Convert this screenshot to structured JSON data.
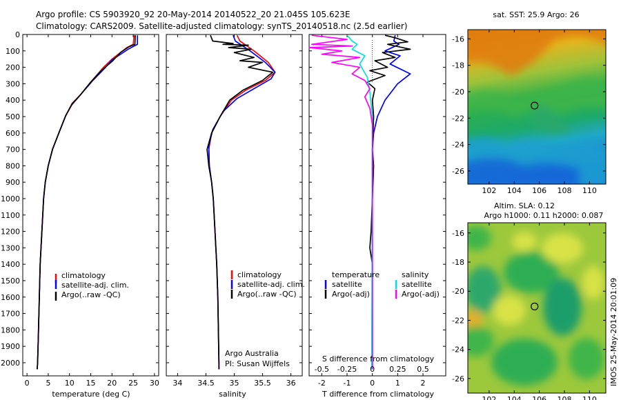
{
  "header": {
    "line1": "Argo profile: CS 5903920_92 20-May-2014 20140522_20 21.045S 105.623E",
    "line2": "Climatology: CARS2009. Satellite-adjusted climatology: synTS_20140518.nc (2.5d earlier)"
  },
  "colors": {
    "climatology": "#ff0000",
    "satellite": "#0000ff",
    "argo": "#000000",
    "sat_salinity": "#00e0e0",
    "argo_salinity_diff": "#ff00ff"
  },
  "chart_data": [
    {
      "type": "line",
      "name": "temperature-profile",
      "xlabel": "temperature (deg C)",
      "ylabel": "",
      "xlim": [
        -1,
        31
      ],
      "ylim": [
        2080,
        0
      ],
      "xticks": [
        0,
        5,
        10,
        15,
        20,
        25,
        30
      ],
      "yticks": [
        0,
        100,
        200,
        300,
        400,
        500,
        600,
        700,
        800,
        900,
        1000,
        1100,
        1200,
        1300,
        1400,
        1500,
        1600,
        1700,
        1800,
        1900,
        2000
      ],
      "legend": [
        "climatology",
        "satellite-adj. clim.",
        "Argo(..raw -QC)"
      ],
      "series": [
        {
          "name": "climatology",
          "color": "#ff0000",
          "points": [
            [
              25.2,
              5
            ],
            [
              25,
              60
            ],
            [
              23.5,
              80
            ],
            [
              20,
              150
            ],
            [
              18,
              200
            ],
            [
              15,
              290
            ],
            [
              12.5,
              370
            ],
            [
              10.6,
              420
            ],
            [
              9,
              500
            ],
            [
              7.5,
              600
            ],
            [
              6,
              700
            ],
            [
              5,
              800
            ],
            [
              4.3,
              900
            ],
            [
              3.9,
              1000
            ],
            [
              3.5,
              1200
            ],
            [
              3.1,
              1400
            ],
            [
              2.9,
              1600
            ],
            [
              2.7,
              1800
            ],
            [
              2.5,
              2000
            ],
            [
              2.4,
              2040
            ]
          ]
        },
        {
          "name": "satellite-adj. clim.",
          "color": "#0000ff",
          "points": [
            [
              26,
              5
            ],
            [
              26,
              60
            ],
            [
              23.8,
              90
            ],
            [
              20,
              155
            ],
            [
              18.5,
              200
            ],
            [
              15.5,
              280
            ],
            [
              12.5,
              370
            ],
            [
              10.5,
              430
            ],
            [
              9,
              500
            ],
            [
              7.5,
              600
            ],
            [
              6,
              700
            ],
            [
              5,
              800
            ],
            [
              4.3,
              900
            ],
            [
              3.9,
              1000
            ],
            [
              3.5,
              1200
            ],
            [
              3.1,
              1400
            ],
            [
              2.9,
              1600
            ],
            [
              2.7,
              1800
            ],
            [
              2.5,
              2000
            ],
            [
              2.4,
              2040
            ]
          ]
        },
        {
          "name": "Argo(..raw -QC)",
          "color": "#000000",
          "points": [
            [
              25.5,
              5
            ],
            [
              25.4,
              60
            ],
            [
              24,
              75
            ],
            [
              22,
              110
            ],
            [
              20.2,
              160
            ],
            [
              17.5,
              220
            ],
            [
              15,
              290
            ],
            [
              12.5,
              370
            ],
            [
              10.7,
              420
            ],
            [
              9.2,
              490
            ],
            [
              7.5,
              600
            ],
            [
              6,
              700
            ],
            [
              5,
              800
            ],
            [
              4.3,
              900
            ],
            [
              3.9,
              1000
            ],
            [
              3.5,
              1200
            ],
            [
              3.1,
              1400
            ],
            [
              2.9,
              1600
            ],
            [
              2.7,
              1800
            ],
            [
              2.5,
              2000
            ],
            [
              2.4,
              2040
            ]
          ]
        }
      ]
    },
    {
      "type": "line",
      "name": "salinity-profile",
      "xlabel": "salinity",
      "xlim": [
        33.8,
        36.2
      ],
      "ylim": [
        2080,
        0
      ],
      "xticks": [
        34,
        34.5,
        35,
        35.5,
        36
      ],
      "xticklabels": [
        "34",
        "34.5",
        "35",
        "35.5",
        "36"
      ],
      "legend": [
        "climatology",
        "satellite-adj. clim.",
        "Argo(..raw -QC)"
      ],
      "annotations": [
        "Argo Australia",
        "PI: Susan Wijffels"
      ],
      "series": [
        {
          "name": "climatology",
          "color": "#ff0000",
          "points": [
            [
              35.05,
              5
            ],
            [
              35.1,
              40
            ],
            [
              35.35,
              100
            ],
            [
              35.6,
              170
            ],
            [
              35.72,
              230
            ],
            [
              35.55,
              280
            ],
            [
              35.2,
              340
            ],
            [
              34.95,
              400
            ],
            [
              34.75,
              500
            ],
            [
              34.6,
              600
            ],
            [
              34.55,
              700
            ],
            [
              34.56,
              800
            ],
            [
              34.6,
              900
            ],
            [
              34.63,
              1000
            ],
            [
              34.66,
              1200
            ],
            [
              34.69,
              1400
            ],
            [
              34.71,
              1600
            ],
            [
              34.72,
              1800
            ],
            [
              34.73,
              2000
            ],
            [
              34.73,
              2040
            ]
          ]
        },
        {
          "name": "satellite-adj. clim.",
          "color": "#0000ff",
          "points": [
            [
              34.98,
              5
            ],
            [
              35.02,
              40
            ],
            [
              35.28,
              100
            ],
            [
              35.55,
              170
            ],
            [
              35.72,
              230
            ],
            [
              35.65,
              270
            ],
            [
              35.4,
              320
            ],
            [
              35.05,
              390
            ],
            [
              34.8,
              470
            ],
            [
              34.62,
              580
            ],
            [
              34.55,
              680
            ],
            [
              34.56,
              800
            ],
            [
              34.6,
              900
            ],
            [
              34.63,
              1000
            ],
            [
              34.66,
              1200
            ],
            [
              34.69,
              1400
            ],
            [
              34.71,
              1600
            ],
            [
              34.72,
              1800
            ],
            [
              34.73,
              2000
            ],
            [
              34.73,
              2040
            ]
          ]
        },
        {
          "name": "Argo(..raw -QC)",
          "color": "#000000",
          "points": [
            [
              34.58,
              5
            ],
            [
              34.62,
              40
            ],
            [
              34.98,
              55
            ],
            [
              34.8,
              60
            ],
            [
              35.25,
              65
            ],
            [
              34.9,
              80
            ],
            [
              35.3,
              90
            ],
            [
              35.0,
              110
            ],
            [
              35.35,
              140
            ],
            [
              35.1,
              160
            ],
            [
              35.5,
              170
            ],
            [
              35.25,
              200
            ],
            [
              35.68,
              230
            ],
            [
              35.5,
              280
            ],
            [
              35.15,
              340
            ],
            [
              34.92,
              400
            ],
            [
              34.75,
              500
            ],
            [
              34.6,
              600
            ],
            [
              34.52,
              700
            ],
            [
              34.55,
              800
            ],
            [
              34.6,
              900
            ],
            [
              34.63,
              1000
            ],
            [
              34.66,
              1200
            ],
            [
              34.69,
              1400
            ],
            [
              34.71,
              1600
            ],
            [
              34.72,
              1800
            ],
            [
              34.73,
              2000
            ],
            [
              34.73,
              2040
            ]
          ]
        }
      ]
    },
    {
      "type": "line",
      "name": "difference-from-climatology",
      "xlabel": "T difference from climatology",
      "xlabel_top": "S difference from climatology",
      "xlim": [
        -2.5,
        2.9
      ],
      "ylim": [
        2080,
        0
      ],
      "xticks": [
        -2,
        -1,
        0,
        1,
        2
      ],
      "xticklabels": [
        "-2",
        "-1",
        "0",
        "1",
        "2"
      ],
      "xticks_top": [
        -2,
        -1,
        0,
        1,
        2
      ],
      "xticklabels_top": [
        "-0.5",
        "-0.25",
        "0",
        "0.25",
        "0.5"
      ],
      "legend_left": [
        "temperature",
        "satellite",
        "Argo(-adj)"
      ],
      "legend_right": [
        "salinity",
        "satellite",
        "Argo(-adj)"
      ],
      "series": [
        {
          "name": "temperature satellite",
          "color": "#0000ff",
          "points": [
            [
              0.9,
              5
            ],
            [
              0.85,
              40
            ],
            [
              1.05,
              60
            ],
            [
              0.5,
              100
            ],
            [
              1.1,
              130
            ],
            [
              0.7,
              180
            ],
            [
              1.5,
              240
            ],
            [
              1.0,
              300
            ],
            [
              0.5,
              400
            ],
            [
              0.2,
              500
            ],
            [
              0.05,
              600
            ],
            [
              0.0,
              700
            ],
            [
              0.0,
              1000
            ],
            [
              0.0,
              2040
            ]
          ]
        },
        {
          "name": "temperature Argo(-adj)",
          "color": "#000000",
          "points": [
            [
              0.5,
              5
            ],
            [
              0.9,
              20
            ],
            [
              1.4,
              45
            ],
            [
              0.6,
              60
            ],
            [
              1.5,
              90
            ],
            [
              0.4,
              110
            ],
            [
              0.9,
              140
            ],
            [
              0.1,
              160
            ],
            [
              0.6,
              200
            ],
            [
              -0.1,
              220
            ],
            [
              0.5,
              250
            ],
            [
              -0.2,
              290
            ],
            [
              0.1,
              330
            ],
            [
              0.0,
              400
            ],
            [
              0.05,
              500
            ],
            [
              0.0,
              700
            ],
            [
              0.05,
              800
            ],
            [
              0.0,
              1000
            ],
            [
              -0.05,
              1200
            ],
            [
              -0.1,
              1300
            ],
            [
              0.0,
              1400
            ],
            [
              0.0,
              1600
            ],
            [
              0.0,
              2040
            ]
          ]
        },
        {
          "name": "salinity satellite",
          "color": "#00e0e0",
          "points": [
            [
              -1.0,
              5
            ],
            [
              -0.8,
              40
            ],
            [
              -0.6,
              60
            ],
            [
              -0.8,
              90
            ],
            [
              -0.3,
              130
            ],
            [
              -0.5,
              180
            ],
            [
              -0.2,
              260
            ],
            [
              -0.1,
              350
            ],
            [
              0.0,
              500
            ],
            [
              0.0,
              800
            ],
            [
              0.0,
              1000
            ],
            [
              -0.02,
              1800
            ],
            [
              -0.02,
              2040
            ]
          ]
        },
        {
          "name": "salinity Argo(-adj)",
          "color": "#ff00ff",
          "points": [
            [
              -2.4,
              5
            ],
            [
              -1.0,
              30
            ],
            [
              -2.4,
              60
            ],
            [
              -0.8,
              70
            ],
            [
              -2.5,
              80
            ],
            [
              -1.2,
              100
            ],
            [
              -2.0,
              120
            ],
            [
              -0.5,
              140
            ],
            [
              -1.6,
              170
            ],
            [
              -0.5,
              200
            ],
            [
              -0.8,
              240
            ],
            [
              -0.3,
              280
            ],
            [
              -0.1,
              330
            ],
            [
              -0.3,
              380
            ],
            [
              -0.1,
              450
            ],
            [
              0.0,
              550
            ],
            [
              0.0,
              700
            ],
            [
              0.0,
              1000
            ],
            [
              0.0,
              2040
            ]
          ]
        }
      ]
    },
    {
      "type": "heatmap",
      "name": "satellite-sst-map",
      "title": "sat. SST: 25.9 Argo: 26",
      "xlim": [
        100.3,
        111.3
      ],
      "ylim": [
        -27,
        -15.3
      ],
      "xticks": [
        102,
        104,
        106,
        108,
        110
      ],
      "yticks": [
        -16,
        -18,
        -20,
        -22,
        -24,
        -26
      ],
      "marker": {
        "lon": 105.62,
        "lat": -21.05
      }
    },
    {
      "type": "heatmap",
      "name": "altimetry-sla-map",
      "title": "Altim. SLA: 0.12",
      "subtitle": "Argo h1000: 0.11 h2000: 0.087",
      "xlim": [
        100.3,
        111.3
      ],
      "ylim": [
        -27,
        -15.3
      ],
      "xticks": [
        102,
        104,
        106,
        108,
        110
      ],
      "yticks": [
        -16,
        -18,
        -20,
        -22,
        -24,
        -26
      ],
      "marker": {
        "lon": 105.62,
        "lat": -21.05
      }
    }
  ],
  "side_label": "IMOS 25-May-2014 20:01:09"
}
